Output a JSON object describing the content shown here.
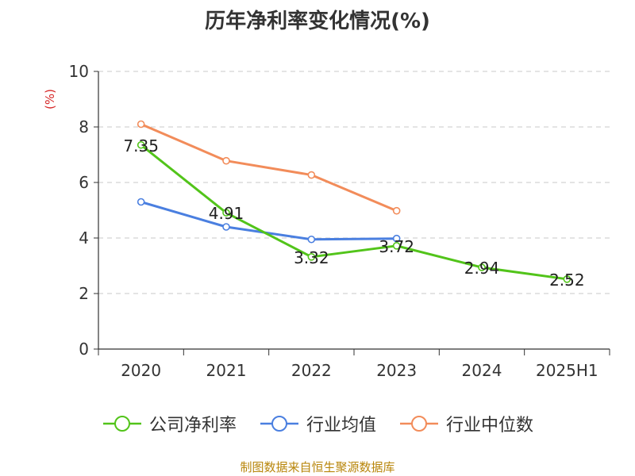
{
  "chart_data": {
    "type": "line",
    "title": "历年净利率变化情况(%)",
    "ylabel": "(%)",
    "xlabel": "",
    "categories": [
      "2020",
      "2021",
      "2022",
      "2023",
      "2024",
      "2025H1"
    ],
    "ylim": [
      0,
      10
    ],
    "yticks": [
      0,
      2,
      4,
      6,
      8,
      10
    ],
    "grid": true,
    "legend_position": "bottom",
    "series": [
      {
        "name": "公司净利率",
        "color": "#52c41a",
        "values": [
          7.35,
          4.91,
          3.32,
          3.72,
          2.94,
          2.52
        ],
        "labels": [
          "7.35",
          "4.91",
          "3.32",
          "3.72",
          "2.94",
          "2.52"
        ]
      },
      {
        "name": "行业均值",
        "color": "#4a7fe0",
        "values": [
          5.3,
          4.4,
          3.95,
          3.98,
          null,
          null
        ]
      },
      {
        "name": "行业中位数",
        "color": "#f28c5a",
        "values": [
          8.1,
          6.78,
          6.27,
          4.98,
          null,
          null
        ]
      }
    ]
  },
  "source": "制图数据来自恒生聚源数据库"
}
